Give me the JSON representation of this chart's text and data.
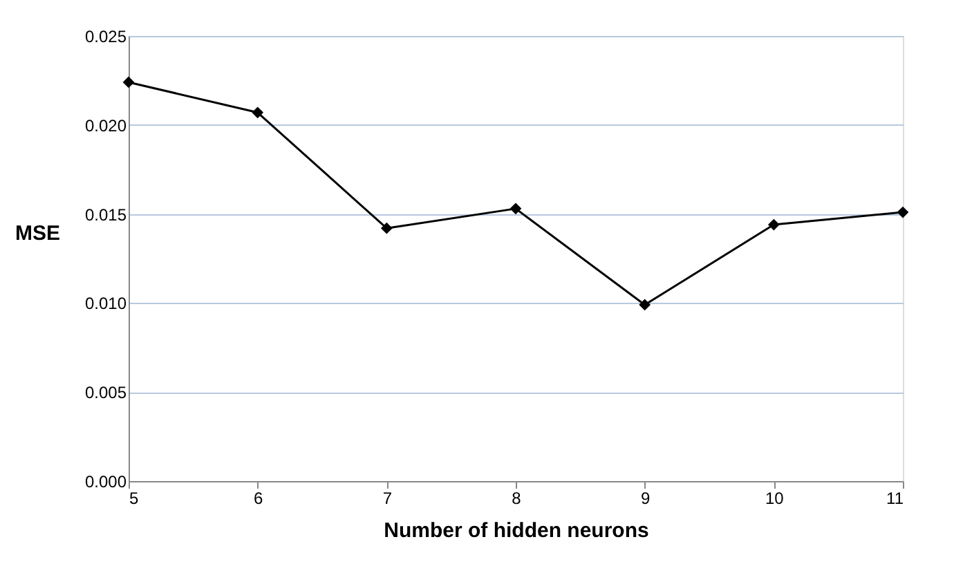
{
  "chart_data": {
    "type": "line",
    "xlabel": "Number of hidden neurons",
    "ylabel": "MSE",
    "x": [
      5,
      6,
      7,
      8,
      9,
      10,
      11
    ],
    "series": [
      {
        "color": "#000000",
        "values": [
          0.0224,
          0.0207,
          0.0142,
          0.0153,
          0.0099,
          0.0144,
          0.0151
        ]
      }
    ],
    "xlim": [
      5,
      11
    ],
    "xticks": [
      5,
      6,
      7,
      8,
      9,
      10,
      11
    ],
    "ylim": [
      0,
      0.025
    ],
    "yticks": [
      {
        "value": 0,
        "label": "0.000"
      },
      {
        "value": 0.005,
        "label": "0.005"
      },
      {
        "value": 0.01,
        "label": "0.010"
      },
      {
        "value": 0.015,
        "label": "0.015"
      },
      {
        "value": 0.02,
        "label": "0.020"
      },
      {
        "value": 0.025,
        "label": "0.025"
      }
    ],
    "grid": "y",
    "marker": "diamond",
    "line_style": "solid"
  }
}
